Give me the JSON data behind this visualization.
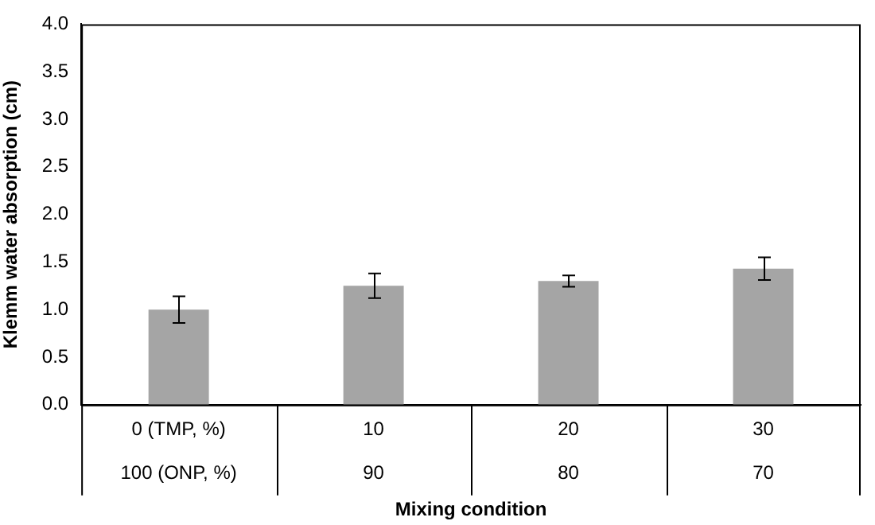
{
  "chart_data": {
    "type": "bar",
    "xlabel": "Mixing condition",
    "ylabel": "Klemm water absorption (cm)",
    "categories": [
      "0 (TMP, %)\n100 (ONP, %)",
      "10\n90",
      "20\n80",
      "30\n70"
    ],
    "values": [
      1.0,
      1.25,
      1.3,
      1.43
    ],
    "errors": [
      0.14,
      0.13,
      0.06,
      0.12
    ],
    "color": "#a5a5a5",
    "ylim": [
      0,
      4
    ],
    "yticks": [
      {
        "value": 0,
        "label": "0.0"
      },
      {
        "value": 0.5,
        "label": "0.5"
      },
      {
        "value": 1,
        "label": "1.0"
      },
      {
        "value": 1.5,
        "label": "1.5"
      },
      {
        "value": 2,
        "label": "2.0"
      },
      {
        "value": 2.5,
        "label": "2.5"
      },
      {
        "value": 3,
        "label": "3.0"
      },
      {
        "value": 3.5,
        "label": "3.5"
      },
      {
        "value": 4,
        "label": "4.0"
      }
    ],
    "grid": false,
    "legend": false
  }
}
